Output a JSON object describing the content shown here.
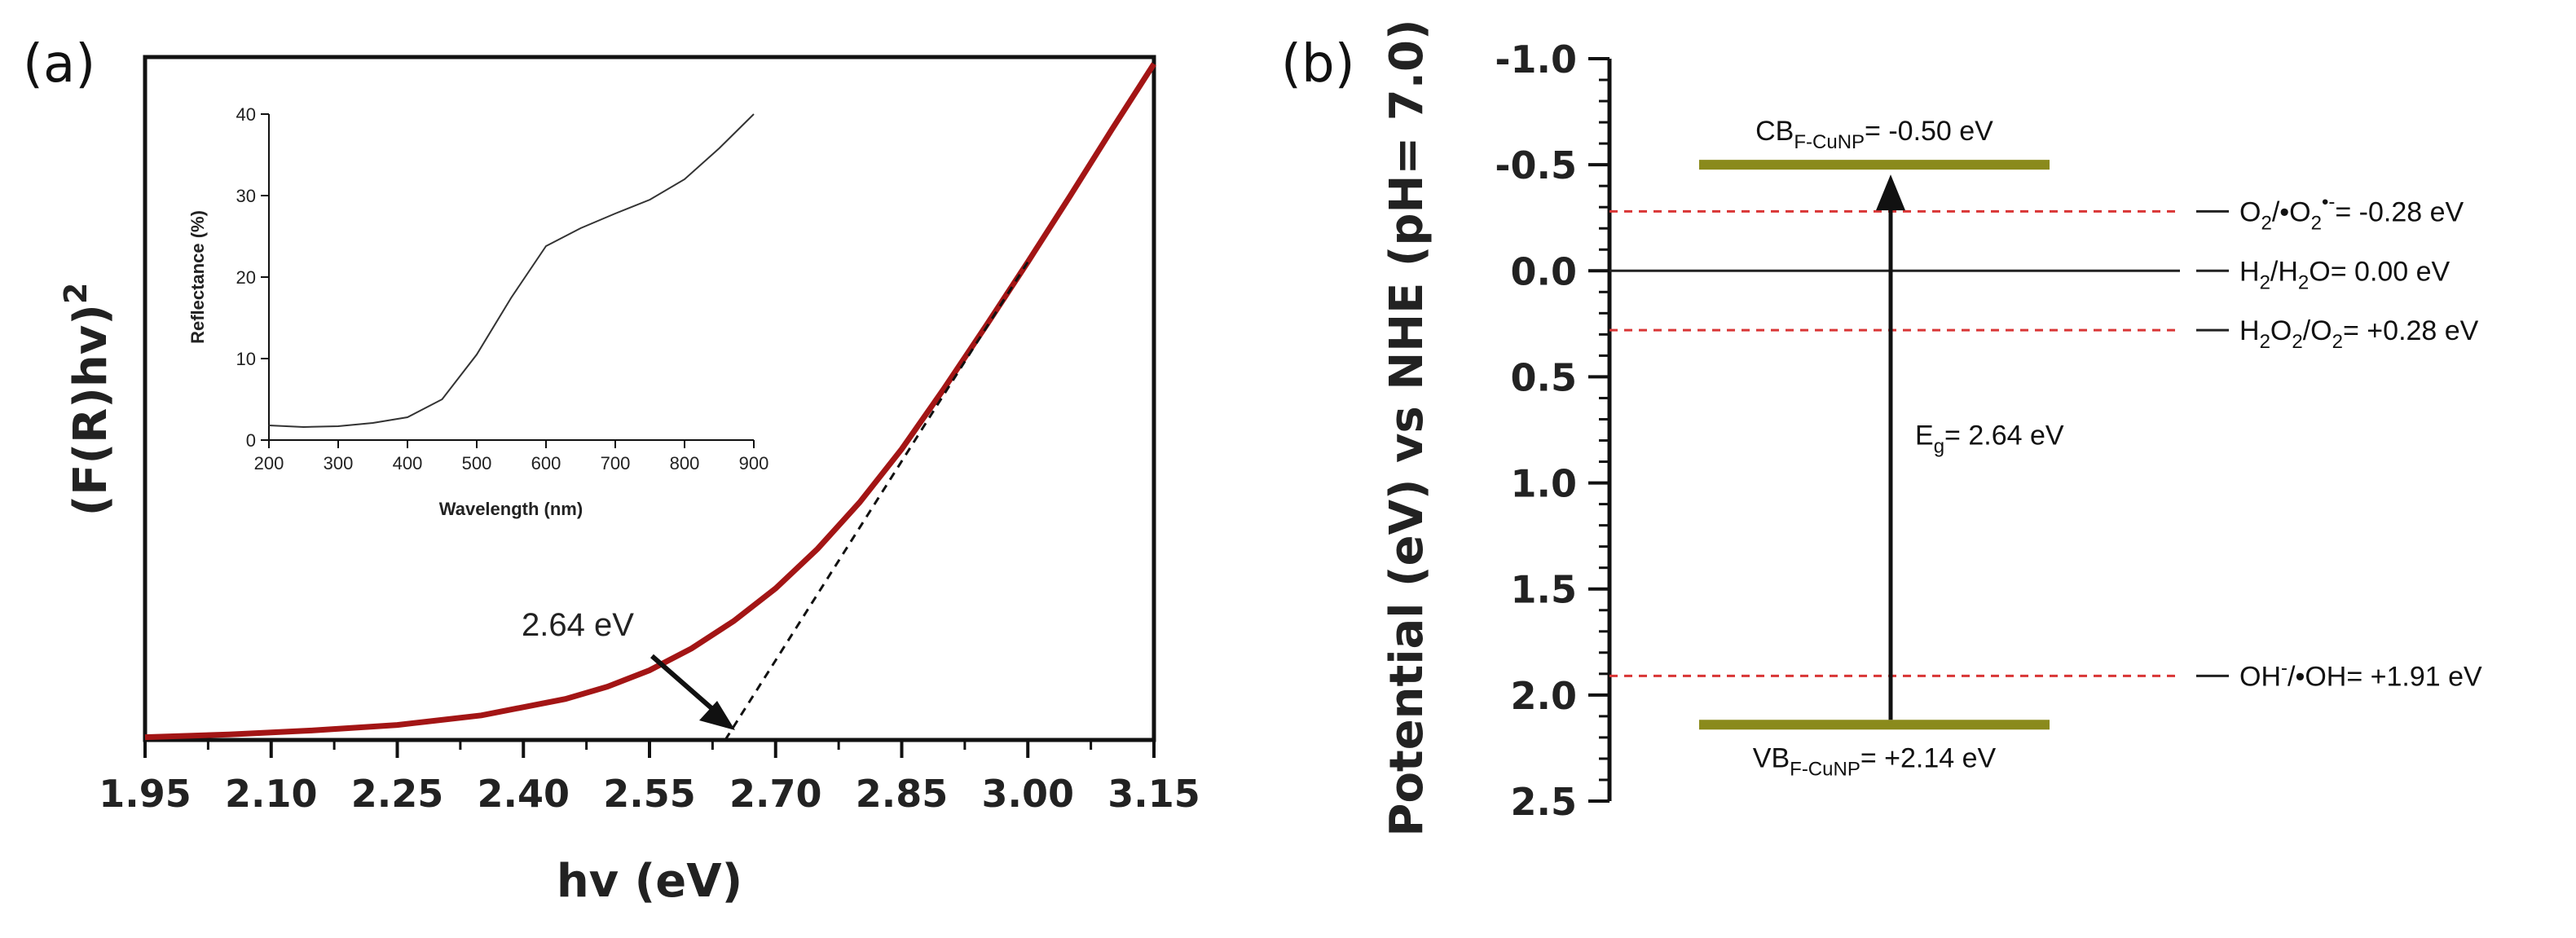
{
  "chart_data": [
    {
      "panel": "(a)",
      "type": "line",
      "xlabel": "hv (eV)",
      "ylabel": "(F(R)hv)",
      "ylabel_superscript": "2",
      "xlim": [
        1.95,
        3.15
      ],
      "ylim": [
        0,
        100
      ],
      "xticks": [
        "1.95",
        "2.10",
        "2.25",
        "2.40",
        "2.55",
        "2.70",
        "2.85",
        "3.00",
        "3.15"
      ],
      "series": [
        {
          "name": "Tauc plot",
          "color": "#a31515",
          "x": [
            1.95,
            2.05,
            2.15,
            2.25,
            2.35,
            2.45,
            2.5,
            2.55,
            2.6,
            2.65,
            2.7,
            2.75,
            2.8,
            2.85,
            2.9,
            2.95,
            3.0,
            3.05,
            3.1,
            3.15
          ],
          "y": [
            0.4,
            0.8,
            1.4,
            2.2,
            3.6,
            6.0,
            7.8,
            10.2,
            13.4,
            17.4,
            22.2,
            28.0,
            34.8,
            42.6,
            51.4,
            60.6,
            70.0,
            79.6,
            89.4,
            99.0
          ]
        },
        {
          "name": "linear extrapolation",
          "style": "dashed",
          "color": "#111111",
          "x": [
            2.64,
            3.0
          ],
          "y": [
            0,
            70.0
          ]
        }
      ],
      "annotation": {
        "text": "2.64 eV",
        "x": 2.64,
        "y": 0
      },
      "inset": {
        "type": "line",
        "xlabel": "Wavelength (nm)",
        "ylabel": "Reflectance (%)",
        "xlim": [
          200,
          900
        ],
        "ylim": [
          0,
          40
        ],
        "xticks": [
          "200",
          "300",
          "400",
          "500",
          "600",
          "700",
          "800",
          "900"
        ],
        "yticks": [
          "0",
          "10",
          "20",
          "30",
          "40"
        ],
        "x": [
          200,
          250,
          300,
          350,
          400,
          450,
          500,
          550,
          600,
          650,
          700,
          750,
          800,
          850,
          900
        ],
        "y": [
          1.8,
          1.6,
          1.7,
          2.1,
          2.8,
          5.0,
          10.5,
          17.5,
          23.8,
          26.0,
          27.8,
          29.5,
          32.0,
          35.8,
          40.0
        ]
      }
    },
    {
      "panel": "(b)",
      "type": "energy_level_diagram",
      "ylabel": "Potential (eV) vs NHE (pH= 7.0)",
      "ylim": [
        -1.0,
        2.5
      ],
      "yticks": [
        "-1.0",
        "-0.5",
        "0.0",
        "0.5",
        "1.0",
        "1.5",
        "2.0",
        "2.5"
      ],
      "bands": [
        {
          "name": "CB",
          "subscript": "F-CuNP",
          "label_suffix": "= -0.50 eV",
          "value": -0.5,
          "color": "#8a8a1c"
        },
        {
          "name": "VB",
          "subscript": "F-CuNP",
          "label_suffix": "= +2.14 eV",
          "value": 2.14,
          "color": "#8a8a1c"
        }
      ],
      "bandgap": {
        "prefix": "E",
        "subscript": "g",
        "suffix": "= 2.64 eV",
        "value": 2.64
      },
      "redox_levels": [
        {
          "value": -0.28,
          "style": "dashed",
          "color": "#d93636",
          "label": "O2/•O2⁻= -0.28 eV"
        },
        {
          "value": 0.0,
          "style": "solid",
          "color": "#222222",
          "label": "H2/H2O= 0.00 eV"
        },
        {
          "value": 0.28,
          "style": "dashed",
          "color": "#d93636",
          "label": "H2O2/O2= +0.28 eV"
        },
        {
          "value": 1.91,
          "style": "dashed",
          "color": "#d93636",
          "label": "OH⁻/•OH= +1.91 eV"
        }
      ]
    }
  ]
}
